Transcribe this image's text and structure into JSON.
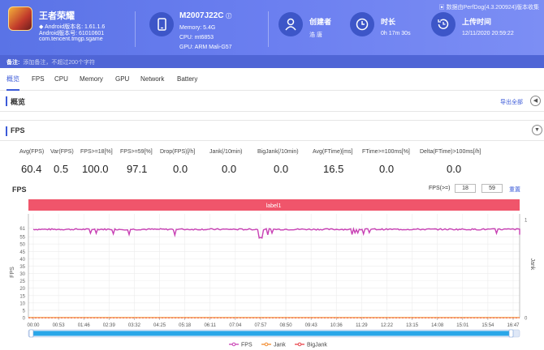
{
  "app": {
    "name": "王者荣耀",
    "platform": "Android",
    "version_label": "Android版本名: 1.61.1.6",
    "code_label": "Android版本号: 61010601",
    "package": "com.tencent.tmgp.sgame"
  },
  "device": {
    "model": "M2007J22C",
    "memory": "Memory: 5.4G",
    "cpu": "CPU: mt6853",
    "gpu": "GPU: ARM Mali-G57"
  },
  "creator": {
    "label": "创建者",
    "value": "浩 唐"
  },
  "duration": {
    "label": "时长",
    "value": "0h 17m 30s"
  },
  "upload": {
    "label": "上传时间",
    "value": "12/11/2020 20:59:22"
  },
  "perfdog": "数据由PerfDog(4.3.200924)版本收集",
  "note": {
    "label": "备注:",
    "placeholder": "添加备注，不超过200个字符"
  },
  "tabs": [
    "概览",
    "FPS",
    "CPU",
    "Memory",
    "GPU",
    "Network",
    "Battery"
  ],
  "overview": {
    "title": "概览",
    "export": "导出全部"
  },
  "fps_section": {
    "title": "FPS"
  },
  "stats": [
    {
      "label": "Avg(FPS)",
      "value": "60.4"
    },
    {
      "label": "Var(FPS)",
      "value": "0.5"
    },
    {
      "label": "FPS>=18[%]",
      "value": "100.0"
    },
    {
      "label": "FPS>=59[%]",
      "value": "97.1"
    },
    {
      "label": "Drop(FPS)[/h]",
      "value": "0.0"
    },
    {
      "label": "Jank(/10min)",
      "value": "0.0"
    },
    {
      "label": "BigJank(/10min)",
      "value": "0.0"
    },
    {
      "label": "Avg(FTime)[ms]",
      "value": "16.5"
    },
    {
      "label": "FTime>=100ms[%]",
      "value": "0.0"
    },
    {
      "label": "Delta(FTime)>100ms[/h]",
      "value": "0.0"
    }
  ],
  "chart_controls": {
    "title": "FPS",
    "fps_label": "FPS(>=)",
    "fps_min": "18",
    "fps_max": "59",
    "reset": "重置"
  },
  "chart_data": {
    "type": "line",
    "title": "FPS",
    "ylabel": "FPS",
    "y2label": "Jank",
    "ylim": [
      0,
      65
    ],
    "yticks": [
      0,
      5,
      10,
      15,
      20,
      25,
      30,
      35,
      40,
      45,
      50,
      55,
      61
    ],
    "y2ticks": [
      0,
      1
    ],
    "x_ticks": [
      "00:00",
      "00:53",
      "01:46",
      "02:39",
      "03:32",
      "04:25",
      "05:18",
      "06:11",
      "07:04",
      "07:57",
      "08:50",
      "09:43",
      "10:36",
      "11:29",
      "12:22",
      "13:15",
      "14:08",
      "15:01",
      "15:54",
      "16:47"
    ],
    "label_band": "label1",
    "series": [
      {
        "name": "FPS",
        "color": "#c840b4",
        "typical": 60,
        "dips": [
          {
            "x": "07:57",
            "value": 54
          }
        ]
      },
      {
        "name": "Jank",
        "color": "#f28c30",
        "values_constant": 0
      },
      {
        "name": "BigJank",
        "color": "#e8434a",
        "values_constant": 0
      }
    ],
    "legend": "bottom",
    "grid": true
  }
}
